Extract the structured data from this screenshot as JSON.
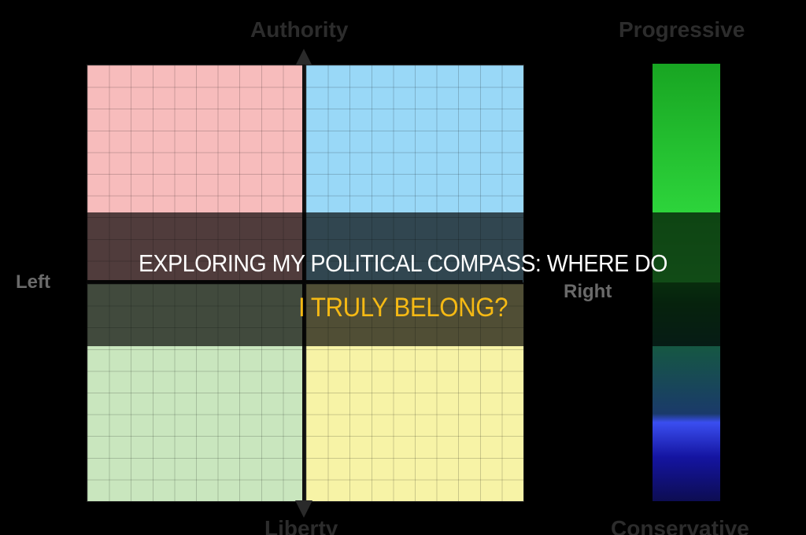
{
  "compass": {
    "top_label": "Authority",
    "bottom_label": "Liberty",
    "left_label": "Left",
    "right_label": "Right",
    "quadrant_colors": {
      "top_left": "#f7bcbc",
      "top_right": "#99d8f7",
      "bottom_left": "#c9e6be",
      "bottom_right": "#f7f3a6"
    }
  },
  "scale": {
    "top_label": "Progressive",
    "bottom_label": "Conservative",
    "colors": {
      "green_top": "#18a522",
      "green_bottom": "#37ea47",
      "blue_top": "#3a4ef0",
      "blue_bottom": "#0d0d52"
    }
  },
  "headline": {
    "line1": "EXPLORING MY POLITICAL COMPASS: WHERE DO",
    "line2": "I TRULY BELONG?",
    "line1_color": "#ffffff",
    "line2_color": "#f5b914"
  }
}
